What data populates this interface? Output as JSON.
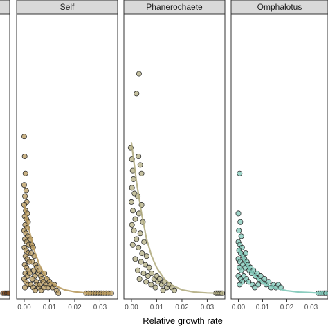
{
  "chart_data": {
    "type": "scatter",
    "xlabel": "Relative growth rate",
    "ylabel": "",
    "xlim": [
      -0.003,
      0.037
    ],
    "ylim": [
      0,
      1
    ],
    "x_ticks": [
      "0.00",
      "0.01",
      "0.02",
      "0.03"
    ],
    "x_tick_values": [
      0.0,
      0.01,
      0.02,
      0.03
    ],
    "grid": false,
    "panels": [
      {
        "name": "",
        "color": "#7a4a22",
        "points": [
          {
            "x": 0.0345,
            "y": 0.02
          },
          {
            "x": 0.0352,
            "y": 0.02
          },
          {
            "x": 0.036,
            "y": 0.02
          },
          {
            "x": 0.0366,
            "y": 0.02
          }
        ],
        "curve": []
      },
      {
        "name": "Self",
        "color": "#b89a5e",
        "points": [
          {
            "x": 0.0,
            "y": 0.57
          },
          {
            "x": 0.0002,
            "y": 0.5
          },
          {
            "x": 0.0005,
            "y": 0.44
          },
          {
            "x": 0.0,
            "y": 0.4
          },
          {
            "x": 0.0008,
            "y": 0.38
          },
          {
            "x": 0.0003,
            "y": 0.36
          },
          {
            "x": 0.001,
            "y": 0.34
          },
          {
            "x": 0.0,
            "y": 0.33
          },
          {
            "x": 0.0006,
            "y": 0.31
          },
          {
            "x": 0.0012,
            "y": 0.3
          },
          {
            "x": 0.0002,
            "y": 0.29
          },
          {
            "x": 0.0009,
            "y": 0.28
          },
          {
            "x": 0.0015,
            "y": 0.27
          },
          {
            "x": 0.0004,
            "y": 0.26
          },
          {
            "x": 0.0011,
            "y": 0.25
          },
          {
            "x": 0.0,
            "y": 0.24
          },
          {
            "x": 0.0007,
            "y": 0.23
          },
          {
            "x": 0.0014,
            "y": 0.22
          },
          {
            "x": 0.0003,
            "y": 0.21
          },
          {
            "x": 0.001,
            "y": 0.2
          },
          {
            "x": 0.0018,
            "y": 0.19
          },
          {
            "x": 0.0001,
            "y": 0.18
          },
          {
            "x": 0.0008,
            "y": 0.17
          },
          {
            "x": 0.0016,
            "y": 0.16
          },
          {
            "x": 0.0005,
            "y": 0.15
          },
          {
            "x": 0.0012,
            "y": 0.14
          },
          {
            "x": 0.002,
            "y": 0.13
          },
          {
            "x": 0.0002,
            "y": 0.12
          },
          {
            "x": 0.0009,
            "y": 0.11
          },
          {
            "x": 0.0017,
            "y": 0.1
          },
          {
            "x": 0.0004,
            "y": 0.09
          },
          {
            "x": 0.0013,
            "y": 0.08
          },
          {
            "x": 0.0,
            "y": 0.07
          },
          {
            "x": 0.0007,
            "y": 0.06
          },
          {
            "x": 0.0015,
            "y": 0.05
          },
          {
            "x": 0.0003,
            "y": 0.04
          },
          {
            "x": 0.0025,
            "y": 0.21
          },
          {
            "x": 0.003,
            "y": 0.19
          },
          {
            "x": 0.0028,
            "y": 0.16
          },
          {
            "x": 0.0035,
            "y": 0.18
          },
          {
            "x": 0.004,
            "y": 0.15
          },
          {
            "x": 0.0032,
            "y": 0.13
          },
          {
            "x": 0.0045,
            "y": 0.12
          },
          {
            "x": 0.0038,
            "y": 0.1
          },
          {
            "x": 0.005,
            "y": 0.11
          },
          {
            "x": 0.0055,
            "y": 0.09
          },
          {
            "x": 0.0042,
            "y": 0.08
          },
          {
            "x": 0.006,
            "y": 0.1
          },
          {
            "x": 0.0048,
            "y": 0.06
          },
          {
            "x": 0.0065,
            "y": 0.08
          },
          {
            "x": 0.0052,
            "y": 0.05
          },
          {
            "x": 0.007,
            "y": 0.07
          },
          {
            "x": 0.0058,
            "y": 0.04
          },
          {
            "x": 0.0075,
            "y": 0.06
          },
          {
            "x": 0.008,
            "y": 0.09
          },
          {
            "x": 0.0068,
            "y": 0.03
          },
          {
            "x": 0.0085,
            "y": 0.05
          },
          {
            "x": 0.009,
            "y": 0.07
          },
          {
            "x": 0.0095,
            "y": 0.04
          },
          {
            "x": 0.01,
            "y": 0.06
          },
          {
            "x": 0.0105,
            "y": 0.05
          },
          {
            "x": 0.0112,
            "y": 0.04
          },
          {
            "x": 0.012,
            "y": 0.05
          },
          {
            "x": 0.0128,
            "y": 0.03
          },
          {
            "x": 0.0135,
            "y": 0.02
          },
          {
            "x": 0.0032,
            "y": 0.07
          },
          {
            "x": 0.0022,
            "y": 0.09
          },
          {
            "x": 0.0026,
            "y": 0.05
          },
          {
            "x": 0.0036,
            "y": 0.04
          },
          {
            "x": 0.0044,
            "y": 0.03
          },
          {
            "x": 0.0062,
            "y": 0.05
          },
          {
            "x": 0.0078,
            "y": 0.04
          },
          {
            "x": 0.0245,
            "y": 0.02
          },
          {
            "x": 0.0255,
            "y": 0.02
          },
          {
            "x": 0.0265,
            "y": 0.02
          },
          {
            "x": 0.0275,
            "y": 0.02
          },
          {
            "x": 0.0285,
            "y": 0.02
          },
          {
            "x": 0.0295,
            "y": 0.02
          },
          {
            "x": 0.0305,
            "y": 0.02
          },
          {
            "x": 0.0315,
            "y": 0.02
          },
          {
            "x": 0.0325,
            "y": 0.02
          },
          {
            "x": 0.0335,
            "y": 0.02
          },
          {
            "x": 0.0345,
            "y": 0.02
          }
        ],
        "curve": [
          {
            "x": 0.0,
            "y": 0.33
          },
          {
            "x": 0.002,
            "y": 0.24
          },
          {
            "x": 0.004,
            "y": 0.17
          },
          {
            "x": 0.006,
            "y": 0.12
          },
          {
            "x": 0.008,
            "y": 0.085
          },
          {
            "x": 0.01,
            "y": 0.062
          },
          {
            "x": 0.013,
            "y": 0.043
          },
          {
            "x": 0.016,
            "y": 0.032
          },
          {
            "x": 0.02,
            "y": 0.025
          },
          {
            "x": 0.025,
            "y": 0.021
          },
          {
            "x": 0.03,
            "y": 0.02
          },
          {
            "x": 0.0345,
            "y": 0.02
          }
        ]
      },
      {
        "name": "Phanerochaete",
        "color": "#b3ad82",
        "points": [
          {
            "x": 0.003,
            "y": 0.79
          },
          {
            "x": 0.002,
            "y": 0.72
          },
          {
            "x": -0.0003,
            "y": 0.53
          },
          {
            "x": 0.0002,
            "y": 0.49
          },
          {
            "x": 0.0028,
            "y": 0.5
          },
          {
            "x": 0.0035,
            "y": 0.47
          },
          {
            "x": 0.0005,
            "y": 0.45
          },
          {
            "x": 0.004,
            "y": 0.44
          },
          {
            "x": 0.0008,
            "y": 0.42
          },
          {
            "x": 0.0002,
            "y": 0.39
          },
          {
            "x": 0.0012,
            "y": 0.37
          },
          {
            "x": 0.0025,
            "y": 0.36
          },
          {
            "x": 0.0,
            "y": 0.34
          },
          {
            "x": 0.004,
            "y": 0.33
          },
          {
            "x": 0.0006,
            "y": 0.31
          },
          {
            "x": 0.003,
            "y": 0.3
          },
          {
            "x": 0.0015,
            "y": 0.28
          },
          {
            "x": 0.0045,
            "y": 0.27
          },
          {
            "x": 0.0002,
            "y": 0.26
          },
          {
            "x": 0.001,
            "y": 0.24
          },
          {
            "x": 0.0035,
            "y": 0.23
          },
          {
            "x": 0.002,
            "y": 0.21
          },
          {
            "x": 0.005,
            "y": 0.2
          },
          {
            "x": 0.0005,
            "y": 0.19
          },
          {
            "x": 0.0028,
            "y": 0.18
          },
          {
            "x": 0.0042,
            "y": 0.16
          },
          {
            "x": 0.006,
            "y": 0.15
          },
          {
            "x": 0.0015,
            "y": 0.14
          },
          {
            "x": 0.0038,
            "y": 0.13
          },
          {
            "x": 0.0055,
            "y": 0.12
          },
          {
            "x": 0.007,
            "y": 0.11
          },
          {
            "x": 0.0025,
            "y": 0.1
          },
          {
            "x": 0.0048,
            "y": 0.09
          },
          {
            "x": 0.0065,
            "y": 0.08
          },
          {
            "x": 0.008,
            "y": 0.09
          },
          {
            "x": 0.009,
            "y": 0.07
          },
          {
            "x": 0.01,
            "y": 0.08
          },
          {
            "x": 0.0105,
            "y": 0.06
          },
          {
            "x": 0.0112,
            "y": 0.07
          },
          {
            "x": 0.012,
            "y": 0.05
          },
          {
            "x": 0.013,
            "y": 0.06
          },
          {
            "x": 0.014,
            "y": 0.04
          },
          {
            "x": 0.015,
            "y": 0.05
          },
          {
            "x": 0.016,
            "y": 0.04
          },
          {
            "x": 0.017,
            "y": 0.03
          },
          {
            "x": 0.0078,
            "y": 0.05
          },
          {
            "x": 0.0095,
            "y": 0.04
          },
          {
            "x": 0.0125,
            "y": 0.03
          },
          {
            "x": 0.0058,
            "y": 0.06
          },
          {
            "x": 0.0032,
            "y": 0.07
          },
          {
            "x": 0.0335,
            "y": 0.02
          },
          {
            "x": 0.0343,
            "y": 0.02
          },
          {
            "x": 0.0351,
            "y": 0.02
          },
          {
            "x": 0.0359,
            "y": 0.02
          }
        ],
        "curve": [
          {
            "x": 0.0,
            "y": 0.55
          },
          {
            "x": 0.002,
            "y": 0.41
          },
          {
            "x": 0.004,
            "y": 0.3
          },
          {
            "x": 0.006,
            "y": 0.21
          },
          {
            "x": 0.008,
            "y": 0.15
          },
          {
            "x": 0.01,
            "y": 0.11
          },
          {
            "x": 0.013,
            "y": 0.07
          },
          {
            "x": 0.016,
            "y": 0.048
          },
          {
            "x": 0.02,
            "y": 0.032
          },
          {
            "x": 0.025,
            "y": 0.024
          },
          {
            "x": 0.03,
            "y": 0.021
          },
          {
            "x": 0.035,
            "y": 0.02
          }
        ]
      },
      {
        "name": "Omphalotus",
        "color": "#7fc8b8",
        "points": [
          {
            "x": 0.0005,
            "y": 0.44
          },
          {
            "x": 0.0,
            "y": 0.3
          },
          {
            "x": 0.0008,
            "y": 0.27
          },
          {
            "x": 0.0002,
            "y": 0.24
          },
          {
            "x": 0.0012,
            "y": 0.22
          },
          {
            "x": 0.0,
            "y": 0.2
          },
          {
            "x": 0.0006,
            "y": 0.19
          },
          {
            "x": 0.0015,
            "y": 0.18
          },
          {
            "x": 0.0003,
            "y": 0.17
          },
          {
            "x": 0.001,
            "y": 0.16
          },
          {
            "x": 0.002,
            "y": 0.15
          },
          {
            "x": 0.0,
            "y": 0.14
          },
          {
            "x": 0.0007,
            "y": 0.13
          },
          {
            "x": 0.0018,
            "y": 0.12
          },
          {
            "x": 0.0004,
            "y": 0.11
          },
          {
            "x": 0.0012,
            "y": 0.1
          },
          {
            "x": 0.0025,
            "y": 0.14
          },
          {
            "x": 0.003,
            "y": 0.16
          },
          {
            "x": 0.0035,
            "y": 0.13
          },
          {
            "x": 0.0028,
            "y": 0.11
          },
          {
            "x": 0.004,
            "y": 0.12
          },
          {
            "x": 0.0045,
            "y": 0.1
          },
          {
            "x": 0.005,
            "y": 0.11
          },
          {
            "x": 0.0055,
            "y": 0.09
          },
          {
            "x": 0.0062,
            "y": 0.1
          },
          {
            "x": 0.007,
            "y": 0.08
          },
          {
            "x": 0.0078,
            "y": 0.09
          },
          {
            "x": 0.0085,
            "y": 0.07
          },
          {
            "x": 0.0092,
            "y": 0.08
          },
          {
            "x": 0.01,
            "y": 0.06
          },
          {
            "x": 0.0108,
            "y": 0.07
          },
          {
            "x": 0.0115,
            "y": 0.05
          },
          {
            "x": 0.0125,
            "y": 0.06
          },
          {
            "x": 0.0135,
            "y": 0.04
          },
          {
            "x": 0.0145,
            "y": 0.05
          },
          {
            "x": 0.0155,
            "y": 0.04
          },
          {
            "x": 0.0165,
            "y": 0.05
          },
          {
            "x": 0.0175,
            "y": 0.04
          },
          {
            "x": 0.0,
            "y": 0.08
          },
          {
            "x": 0.0009,
            "y": 0.07
          },
          {
            "x": 0.0016,
            "y": 0.06
          },
          {
            "x": 0.0022,
            "y": 0.08
          },
          {
            "x": 0.0033,
            "y": 0.07
          },
          {
            "x": 0.0042,
            "y": 0.06
          },
          {
            "x": 0.0058,
            "y": 0.05
          },
          {
            "x": 0.0068,
            "y": 0.04
          },
          {
            "x": 0.0082,
            "y": 0.05
          },
          {
            "x": 0.0005,
            "y": 0.05
          },
          {
            "x": 0.033,
            "y": 0.02
          },
          {
            "x": 0.0338,
            "y": 0.02
          },
          {
            "x": 0.0346,
            "y": 0.02
          },
          {
            "x": 0.0354,
            "y": 0.02
          },
          {
            "x": 0.0362,
            "y": 0.02
          }
        ],
        "curve": [
          {
            "x": 0.0,
            "y": 0.18
          },
          {
            "x": 0.002,
            "y": 0.14
          },
          {
            "x": 0.004,
            "y": 0.11
          },
          {
            "x": 0.006,
            "y": 0.088
          },
          {
            "x": 0.008,
            "y": 0.071
          },
          {
            "x": 0.01,
            "y": 0.058
          },
          {
            "x": 0.013,
            "y": 0.045
          },
          {
            "x": 0.016,
            "y": 0.036
          },
          {
            "x": 0.02,
            "y": 0.029
          },
          {
            "x": 0.025,
            "y": 0.024
          },
          {
            "x": 0.03,
            "y": 0.022
          },
          {
            "x": 0.035,
            "y": 0.02
          }
        ]
      }
    ]
  }
}
